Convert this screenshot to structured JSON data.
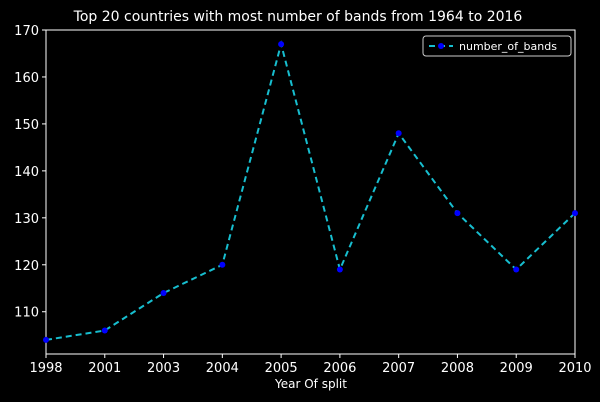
{
  "chart_data": {
    "type": "line",
    "title": "Top 20 countries with most number of bands from 1964 to 2016",
    "xlabel": "Year Of split",
    "ylabel": "",
    "categories": [
      "1998",
      "2001",
      "2003",
      "2004",
      "2005",
      "2006",
      "2007",
      "2008",
      "2009",
      "2010"
    ],
    "series": [
      {
        "name": "number_of_bands",
        "values": [
          104,
          106,
          114,
          120,
          167,
          119,
          148,
          131,
          119,
          131
        ],
        "line_color": "#17becf",
        "line_style": "dashed",
        "marker_color": "#0000ff",
        "marker": "circle"
      }
    ],
    "ylim": [
      101,
      170
    ],
    "yticks": [
      110,
      120,
      130,
      140,
      150,
      160,
      170
    ],
    "grid": false,
    "legend_position": "top-right",
    "background_color": "#000000",
    "text_color": "#ffffff",
    "axis_color": "#ffffff"
  }
}
